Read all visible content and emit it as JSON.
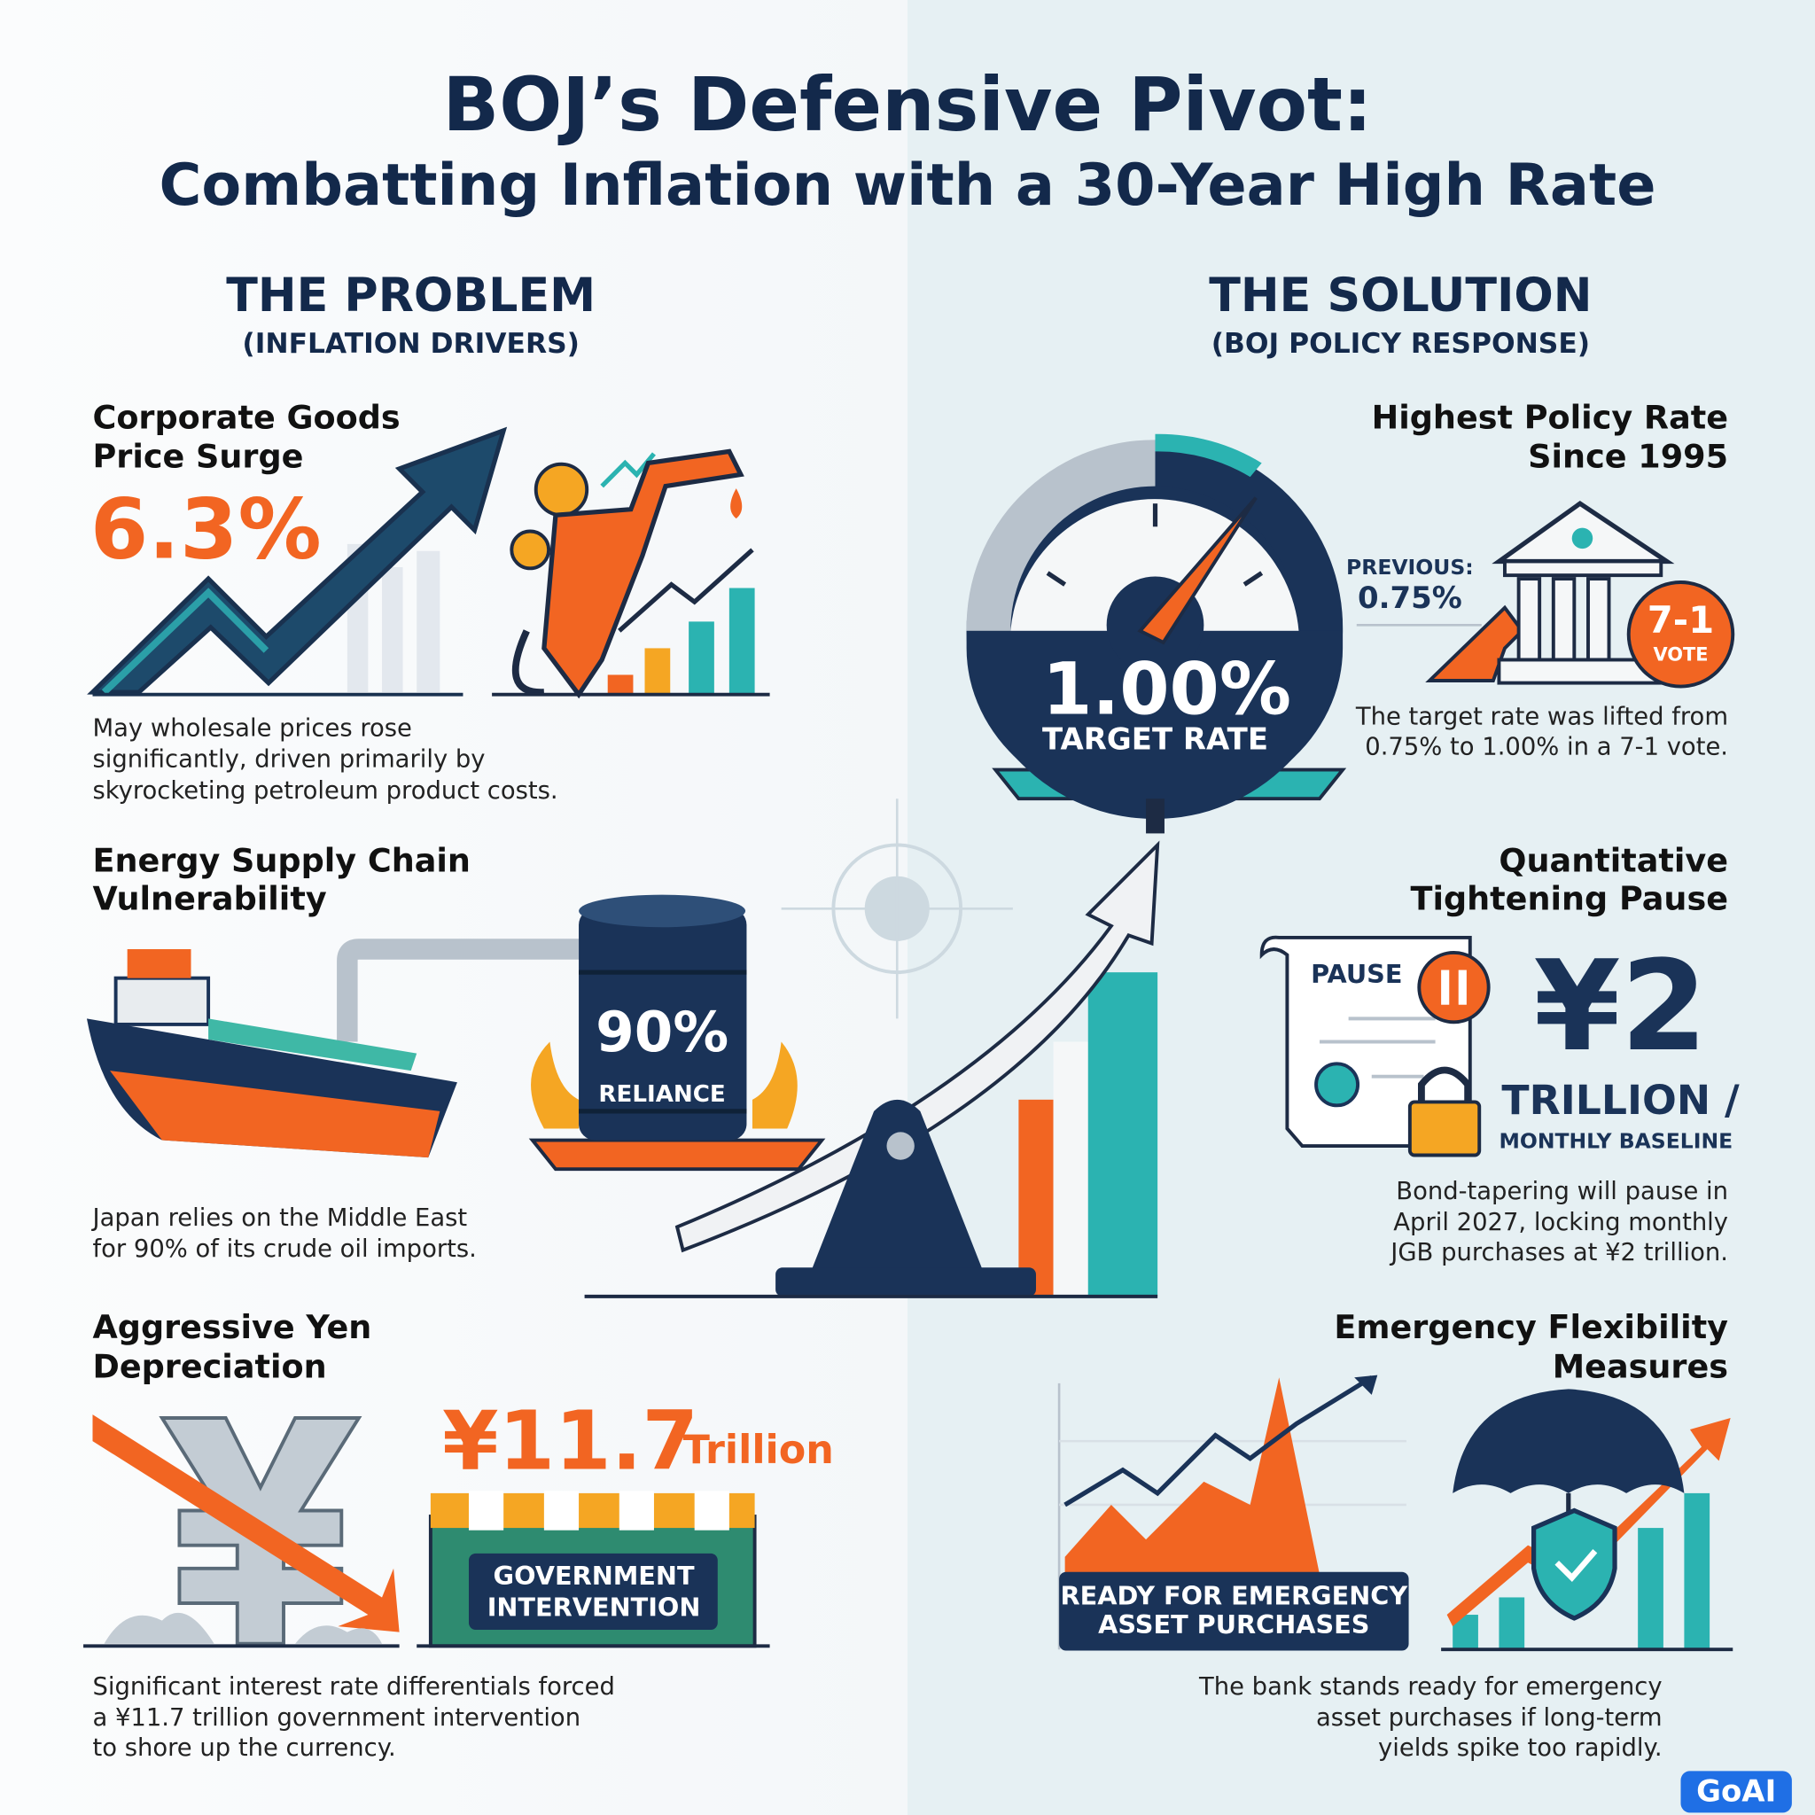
{
  "header": {
    "title_lines": [
      "BOJ’s Defensive Pivot:",
      "Combatting Inflation with a 30-Year High Rate"
    ]
  },
  "problem": {
    "heading": "THE PROBLEM",
    "subheading": "(INFLATION DRIVERS)",
    "items": [
      {
        "title_lines": [
          "Corporate Goods",
          "Price Surge"
        ],
        "stat": "6.3%",
        "description_lines": [
          "May wholesale prices rose",
          "significantly, driven primarily by",
          "skyrocketing petroleum product costs."
        ]
      },
      {
        "title_lines": [
          "Energy Supply Chain",
          "Vulnerability"
        ],
        "stat": "90%",
        "stat_label": "RELIANCE",
        "description_lines": [
          "Japan relies on the Middle East",
          "for 90% of its crude oil imports."
        ]
      },
      {
        "title_lines": [
          "Aggressive Yen",
          "Depreciation"
        ],
        "stat": "¥11.7",
        "stat_unit": "Trillion",
        "badge_lines": [
          "GOVERNMENT",
          "INTERVENTION"
        ],
        "description_lines": [
          "Significant interest rate differentials forced",
          "a ¥11.7 trillion government intervention",
          "to shore up the currency."
        ]
      }
    ]
  },
  "solution": {
    "heading": "THE SOLUTION",
    "subheading": "(BOJ POLICY RESPONSE)",
    "gauge": {
      "stat": "1.00%",
      "label": "TARGET RATE"
    },
    "items": [
      {
        "title_lines": [
          "Highest Policy Rate",
          "Since 1995"
        ],
        "previous_label": "PREVIOUS:",
        "previous_value": "0.75%",
        "vote": "7-1",
        "vote_label": "VOTE",
        "description_lines": [
          "The target rate was lifted from",
          "0.75% to 1.00% in a 7-1 vote."
        ]
      },
      {
        "title_lines": [
          "Quantitative",
          "Tightening Pause"
        ],
        "document_label": "PAUSE",
        "stat": "¥2",
        "stat_unit": "TRILLION /",
        "stat_label": "MONTHLY BASELINE",
        "description_lines": [
          "Bond-tapering will pause in",
          "April 2027, locking monthly",
          "JGB purchases at ¥2 trillion."
        ]
      },
      {
        "title_lines": [
          "Emergency Flexibility",
          "Measures"
        ],
        "badge_lines": [
          "READY FOR EMERGENCY",
          "ASSET PURCHASES"
        ],
        "description_lines": [
          "The bank stands ready for emergency",
          "asset purchases if long-term",
          "yields spike too rapidly."
        ]
      }
    ]
  },
  "watermark": "GoAI"
}
